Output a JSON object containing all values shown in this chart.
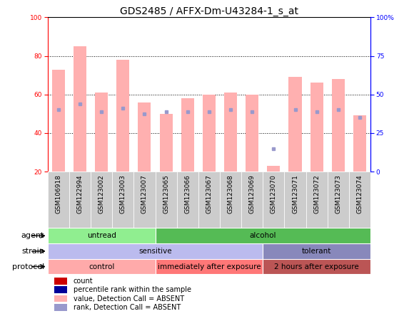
{
  "title": "GDS2485 / AFFX-Dm-U43284-1_s_at",
  "samples": [
    "GSM106918",
    "GSM122994",
    "GSM123002",
    "GSM123003",
    "GSM123007",
    "GSM123065",
    "GSM123066",
    "GSM123067",
    "GSM123068",
    "GSM123069",
    "GSM123070",
    "GSM123071",
    "GSM123072",
    "GSM123073",
    "GSM123074"
  ],
  "bar_values": [
    73,
    85,
    61,
    78,
    56,
    50,
    58,
    60,
    61,
    60,
    23,
    69,
    66,
    68,
    49
  ],
  "rank_values": [
    52,
    55,
    51,
    53,
    50,
    51,
    51,
    51,
    52,
    51,
    32,
    52,
    51,
    52,
    48
  ],
  "bar_color": "#FFB0B0",
  "rank_color": "#9999CC",
  "ylim_left": [
    20,
    100
  ],
  "ylim_right": [
    0,
    100
  ],
  "yticks_left": [
    20,
    40,
    60,
    80,
    100
  ],
  "yticks_right": [
    0,
    25,
    50,
    75,
    100
  ],
  "yticklabels_right": [
    "0",
    "25",
    "50",
    "75",
    "100%"
  ],
  "grid_values": [
    40,
    60,
    80
  ],
  "agent_groups": [
    {
      "label": "untread",
      "start": 0,
      "end": 5,
      "color": "#90EE90"
    },
    {
      "label": "alcohol",
      "start": 5,
      "end": 15,
      "color": "#55BB55"
    }
  ],
  "strain_groups": [
    {
      "label": "sensitive",
      "start": 0,
      "end": 10,
      "color": "#BBBBEE"
    },
    {
      "label": "tolerant",
      "start": 10,
      "end": 15,
      "color": "#8888BB"
    }
  ],
  "protocol_groups": [
    {
      "label": "control",
      "start": 0,
      "end": 5,
      "color": "#FFAAAA"
    },
    {
      "label": "immediately after exposure",
      "start": 5,
      "end": 10,
      "color": "#FF7777"
    },
    {
      "label": "2 hours after exposure",
      "start": 10,
      "end": 15,
      "color": "#BB5555"
    }
  ],
  "legend_items": [
    {
      "label": "count",
      "color": "#CC0000"
    },
    {
      "label": "percentile rank within the sample",
      "color": "#000099"
    },
    {
      "label": "value, Detection Call = ABSENT",
      "color": "#FFB0B0"
    },
    {
      "label": "rank, Detection Call = ABSENT",
      "color": "#9999CC"
    }
  ],
  "row_labels": [
    "agent",
    "strain",
    "protocol"
  ],
  "title_fontsize": 10,
  "tick_fontsize": 6.5,
  "label_fontsize": 8,
  "annotation_fontsize": 7.5,
  "legend_fontsize": 7,
  "bar_width": 0.6
}
